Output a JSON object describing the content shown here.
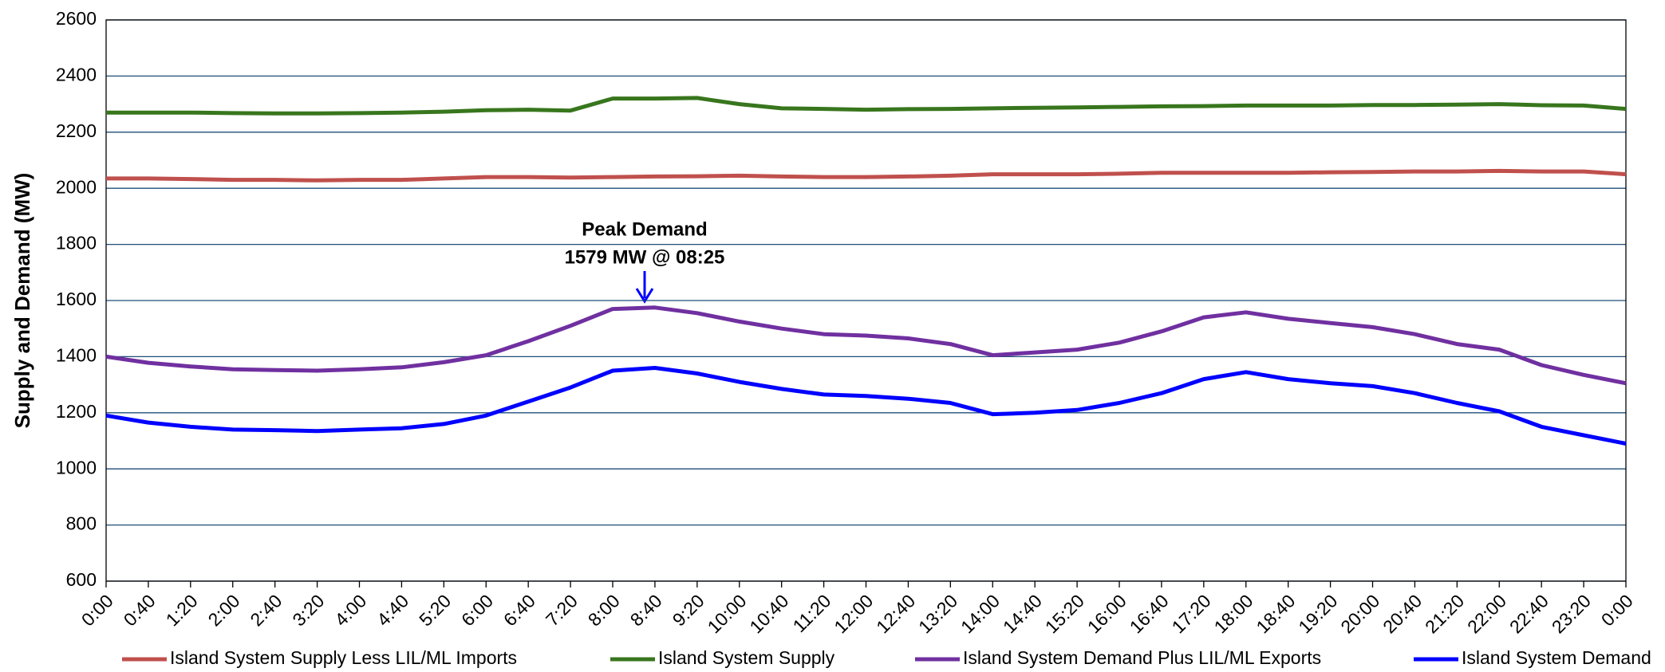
{
  "chart_data": {
    "type": "line",
    "y_label": "Supply and Demand (MW)",
    "annotation": [
      "Peak Demand",
      "1579 MW @ 08:25"
    ],
    "categories": [
      "0:00",
      "0:40",
      "1:20",
      "2:00",
      "2:40",
      "3:20",
      "4:00",
      "4:40",
      "5:20",
      "6:00",
      "6:40",
      "7:20",
      "8:00",
      "8:40",
      "9:20",
      "10:00",
      "10:40",
      "11:20",
      "12:00",
      "12:40",
      "13:20",
      "14:00",
      "14:40",
      "15:20",
      "16:00",
      "16:40",
      "17:20",
      "18:00",
      "18:40",
      "19:20",
      "20:00",
      "20:40",
      "21:20",
      "22:00",
      "22:40",
      "23:20",
      "0:00"
    ],
    "series": [
      {
        "name": "Island System Supply Less LIL/ML Imports",
        "color": "#c0504d",
        "values": [
          2035,
          2035,
          2033,
          2030,
          2030,
          2028,
          2030,
          2030,
          2035,
          2040,
          2040,
          2038,
          2040,
          2042,
          2043,
          2045,
          2042,
          2040,
          2040,
          2042,
          2045,
          2050,
          2050,
          2050,
          2052,
          2055,
          2055,
          2055,
          2055,
          2057,
          2058,
          2060,
          2060,
          2062,
          2060,
          2060,
          2050
        ]
      },
      {
        "name": "Island System Supply",
        "color": "#38761d",
        "values": [
          2270,
          2270,
          2270,
          2268,
          2267,
          2267,
          2268,
          2270,
          2273,
          2278,
          2280,
          2277,
          2320,
          2320,
          2322,
          2300,
          2285,
          2283,
          2280,
          2282,
          2283,
          2285,
          2287,
          2288,
          2290,
          2292,
          2293,
          2295,
          2295,
          2295,
          2297,
          2297,
          2298,
          2300,
          2296,
          2295,
          2283
        ]
      },
      {
        "name": "Island System Demand Plus LIL/ML Exports",
        "color": "#7030a0",
        "values": [
          1400,
          1378,
          1365,
          1355,
          1352,
          1350,
          1355,
          1362,
          1380,
          1405,
          1455,
          1510,
          1570,
          1575,
          1555,
          1525,
          1500,
          1480,
          1475,
          1465,
          1445,
          1405,
          1415,
          1425,
          1450,
          1490,
          1540,
          1558,
          1535,
          1520,
          1505,
          1480,
          1445,
          1425,
          1370,
          1335,
          1305
        ]
      },
      {
        "name": "Island System Demand",
        "color": "#0000ff",
        "values": [
          1190,
          1165,
          1150,
          1140,
          1138,
          1135,
          1140,
          1145,
          1160,
          1190,
          1240,
          1290,
          1350,
          1360,
          1340,
          1310,
          1285,
          1265,
          1260,
          1250,
          1235,
          1195,
          1200,
          1210,
          1235,
          1270,
          1320,
          1345,
          1320,
          1305,
          1295,
          1270,
          1235,
          1205,
          1150,
          1120,
          1090
        ]
      }
    ],
    "ylim": [
      600,
      2600
    ],
    "yticks": [
      600,
      800,
      1000,
      1200,
      1400,
      1600,
      1800,
      2000,
      2200,
      2400,
      2600
    ],
    "grid": true
  }
}
